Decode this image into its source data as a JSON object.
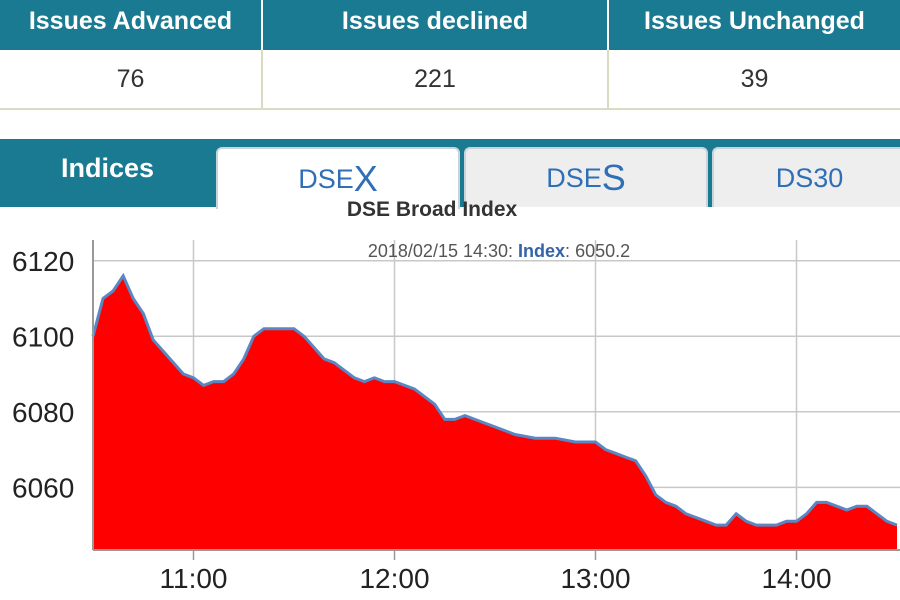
{
  "summary": {
    "headers": [
      "Issues Advanced",
      "Issues declined",
      "Issues Unchanged"
    ],
    "values": [
      "76",
      "221",
      "39"
    ]
  },
  "tabs": {
    "indices_label": "Indices",
    "items": [
      {
        "prefix": "DSE",
        "suffix": "X",
        "active": true
      },
      {
        "prefix": "DSE",
        "suffix": "S",
        "active": false
      },
      {
        "prefix": "DS30",
        "suffix": "",
        "active": false
      }
    ]
  },
  "colors": {
    "header_bg": "#1a7a91",
    "area_fill": "#ff0000",
    "line": "#5b86c4",
    "tab_text": "#2f6fb6"
  },
  "chart_data": {
    "type": "area",
    "title": "DSE Broad Index",
    "readout": {
      "time": "2018/02/15 14:30:",
      "label": "Index",
      "value": "6050.2"
    },
    "xlabel": "",
    "ylabel": "",
    "x_ticks": [
      "11:00",
      "12:00",
      "13:00",
      "14:00"
    ],
    "y_ticks": [
      6120,
      6100,
      6080,
      6060
    ],
    "ylim": [
      6043.4,
      6125.5
    ],
    "xlim": [
      "10:30",
      "14:30"
    ],
    "grid": true,
    "series": [
      {
        "x": [
          "10:30",
          "10:33",
          "10:36",
          "10:39",
          "10:42",
          "10:45",
          "10:48",
          "10:51",
          "10:54",
          "10:57",
          "11:00",
          "11:03",
          "11:06",
          "11:09",
          "11:12",
          "11:15",
          "11:18",
          "11:21",
          "11:24",
          "11:27",
          "11:30",
          "11:33",
          "11:36",
          "11:39",
          "11:42",
          "11:45",
          "11:48",
          "11:51",
          "11:54",
          "11:57",
          "12:00",
          "12:06",
          "12:12",
          "12:15",
          "12:18",
          "12:21",
          "12:24",
          "12:27",
          "12:30",
          "12:36",
          "12:42",
          "12:48",
          "12:54",
          "13:00",
          "13:03",
          "13:06",
          "13:09",
          "13:12",
          "13:15",
          "13:18",
          "13:21",
          "13:24",
          "13:27",
          "13:30",
          "13:33",
          "13:36",
          "13:39",
          "13:42",
          "13:45",
          "13:48",
          "13:51",
          "13:54",
          "13:57",
          "14:00",
          "14:03",
          "14:06",
          "14:09",
          "14:12",
          "14:15",
          "14:18",
          "14:21",
          "14:24",
          "14:27",
          "14:30"
        ],
        "values": [
          6100,
          6110,
          6112,
          6116,
          6110,
          6106,
          6099,
          6096,
          6093,
          6090,
          6089,
          6087,
          6088,
          6088,
          6090,
          6094,
          6100,
          6102,
          6102,
          6102,
          6102,
          6100,
          6097,
          6094,
          6093,
          6091,
          6089,
          6088,
          6089,
          6088,
          6088,
          6086,
          6082,
          6078,
          6078,
          6079,
          6078,
          6077,
          6076,
          6074,
          6073,
          6073,
          6072,
          6072,
          6070,
          6069,
          6068,
          6067,
          6063,
          6058,
          6056,
          6055,
          6053,
          6052,
          6051,
          6050,
          6050,
          6053,
          6051,
          6050,
          6050,
          6050,
          6051,
          6051,
          6053,
          6056,
          6056,
          6055,
          6054,
          6055,
          6055,
          6053,
          6051,
          6050
        ]
      }
    ]
  }
}
